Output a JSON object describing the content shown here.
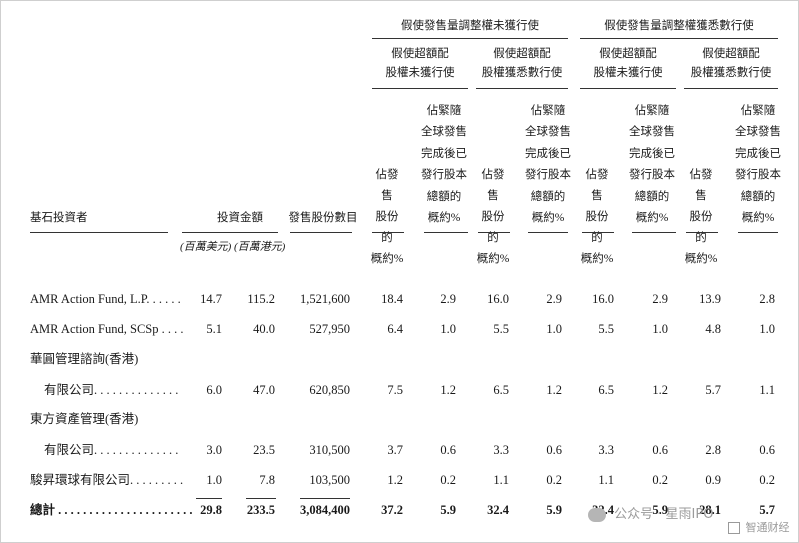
{
  "group_headers": {
    "not_exercised": "假使發售量調整權未獲行使",
    "fully_exercised": "假使發售量調整權獲悉數行使"
  },
  "sub_headers": {
    "overallot_not": "假使超額配\n股權未獲行使",
    "overallot_full": "假使超額配\n股權獲悉數行使"
  },
  "columns": {
    "investor": "基石投資者",
    "investment": "投資金額",
    "shares": "發售股份數目",
    "pct_offer": "佔發售\n股份的\n概約%",
    "pct_total": "佔緊隨\n全球發售\n完成後已\n發行股本\n總額的\n概約%"
  },
  "units": {
    "usd": "(百萬美元)",
    "hkd": "(百萬港元)"
  },
  "rows": [
    {
      "name": "AMR Action Fund, L.P. . . . . .",
      "usd": "14.7",
      "hkd": "115.2",
      "shares": "1,521,600",
      "v": [
        "18.4",
        "2.9",
        "16.0",
        "2.9",
        "16.0",
        "2.9",
        "13.9",
        "2.8"
      ]
    },
    {
      "name": "AMR Action Fund, SCSp . . . .",
      "usd": "5.1",
      "hkd": "40.0",
      "shares": "527,950",
      "v": [
        "6.4",
        "1.0",
        "5.5",
        "1.0",
        "5.5",
        "1.0",
        "4.8",
        "1.0"
      ]
    },
    {
      "name_line1": "華圓管理諮詢(香港)",
      "name": "有限公司. . . . . . . . . . . . . .",
      "usd": "6.0",
      "hkd": "47.0",
      "shares": "620,850",
      "v": [
        "7.5",
        "1.2",
        "6.5",
        "1.2",
        "6.5",
        "1.2",
        "5.7",
        "1.1"
      ]
    },
    {
      "name_line1": "東方資產管理(香港)",
      "name": "有限公司. . . . . . . . . . . . . .",
      "usd": "3.0",
      "hkd": "23.5",
      "shares": "310,500",
      "v": [
        "3.7",
        "0.6",
        "3.3",
        "0.6",
        "3.3",
        "0.6",
        "2.8",
        "0.6"
      ]
    },
    {
      "name": "駿昇環球有限公司. . . . . . . . .",
      "usd": "1.0",
      "hkd": "7.8",
      "shares": "103,500",
      "v": [
        "1.2",
        "0.2",
        "1.1",
        "0.2",
        "1.1",
        "0.2",
        "0.9",
        "0.2"
      ]
    }
  ],
  "total": {
    "name": "總計 . . . . . . . . . . . . . . . . . . . . . .",
    "usd": "29.8",
    "hkd": "233.5",
    "shares": "3,084,400",
    "v": [
      "37.2",
      "5.9",
      "32.4",
      "5.9",
      "32.4",
      "5.9",
      "28.1",
      "5.7"
    ]
  },
  "watermark": {
    "text": "公众号 · 星雨IPO",
    "logo": "智通财经"
  }
}
